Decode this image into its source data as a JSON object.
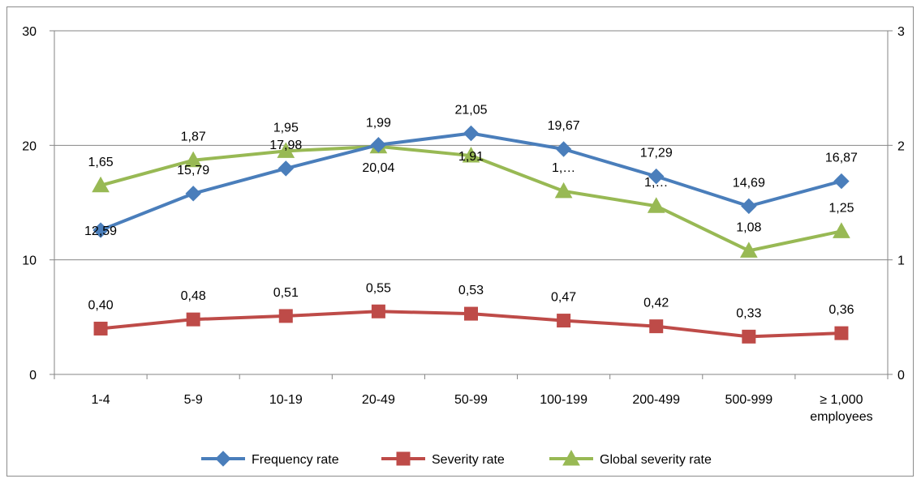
{
  "chart_data": {
    "type": "line",
    "categories": [
      "1-4",
      "5-9",
      "10-19",
      "20-49",
      "50-99",
      "100-199",
      "200-499",
      "500-999",
      "≥ 1,000 employees"
    ],
    "category_lines": [
      [
        "1-4"
      ],
      [
        "5-9"
      ],
      [
        "10-19"
      ],
      [
        "20-49"
      ],
      [
        "50-99"
      ],
      [
        "100-199"
      ],
      [
        "200-499"
      ],
      [
        "500-999"
      ],
      [
        "≥ 1,000",
        "employees"
      ]
    ],
    "left_axis": {
      "ylim": [
        0,
        30
      ],
      "ticks": [
        "0",
        "10",
        "20",
        "30"
      ],
      "tick_values": [
        0,
        10,
        20,
        30
      ]
    },
    "right_axis": {
      "ylim": [
        0,
        3
      ],
      "ticks": [
        "0",
        "1",
        "2",
        "3"
      ],
      "tick_values": [
        0,
        1,
        2,
        3
      ]
    },
    "grid": true,
    "legend_position": "bottom",
    "series": [
      {
        "name": "Frequency rate",
        "axis": "left",
        "color": "#4a7ebb",
        "marker": "diamond",
        "values": [
          12.59,
          15.79,
          17.98,
          20.04,
          21.05,
          19.67,
          17.29,
          14.69,
          16.87
        ],
        "labels": [
          "12,59",
          "15,79",
          "17,98",
          "20,04",
          "21,05",
          "19,67",
          "17,29",
          "14,69",
          "16,87"
        ],
        "label_position": [
          "on",
          "above",
          "above",
          "below",
          "above",
          "above",
          "above",
          "above",
          "above"
        ]
      },
      {
        "name": "Severity rate",
        "axis": "left",
        "color": "#be4b48",
        "marker": "square",
        "values": [
          0.4,
          0.48,
          0.51,
          0.55,
          0.53,
          0.47,
          0.42,
          0.33,
          0.36
        ],
        "plot_values": [
          4.0,
          4.8,
          5.1,
          5.5,
          5.3,
          4.7,
          4.2,
          3.3,
          3.6
        ],
        "labels": [
          "0,40",
          "0,48",
          "0,51",
          "0,55",
          "0,53",
          "0,47",
          "0,42",
          "0,33",
          "0,36"
        ],
        "label_position": [
          "above",
          "above",
          "above",
          "above",
          "above",
          "above",
          "above",
          "above",
          "above"
        ]
      },
      {
        "name": "Global severity rate",
        "axis": "right",
        "color": "#98b954",
        "marker": "triangle",
        "values": [
          1.65,
          1.87,
          1.95,
          1.99,
          1.91,
          1.6,
          1.47,
          1.08,
          1.25
        ],
        "labels": [
          "1,65",
          "1,87",
          "1,95",
          "1,99",
          "1,91",
          "1,…",
          "1,…",
          "1,08",
          "1,25"
        ],
        "label_position": [
          "above",
          "above",
          "above",
          "above",
          "on",
          "above",
          "above",
          "above",
          "above"
        ]
      }
    ]
  }
}
